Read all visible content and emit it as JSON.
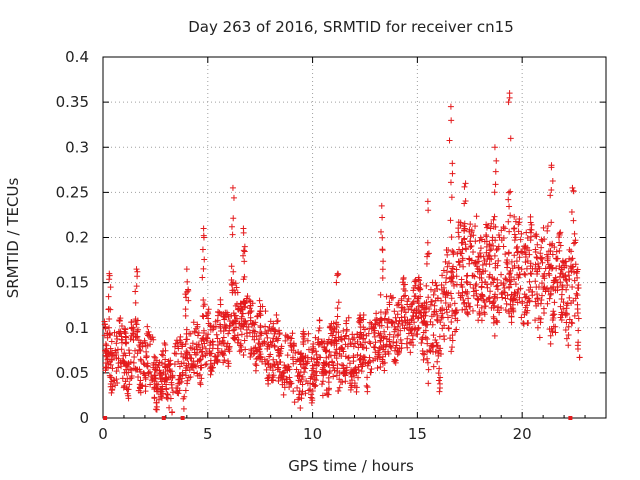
{
  "chart_data": {
    "type": "scatter",
    "title": "Day 263 of 2016, SRMTID for receiver cn15",
    "xlabel": "GPS time / hours",
    "ylabel": "SRMTID / TECUs",
    "xlim": [
      0,
      24
    ],
    "ylim": [
      0,
      0.4
    ],
    "xticks": [
      0,
      5,
      10,
      15,
      20
    ],
    "xtick_labels": [
      "0",
      "5",
      "10",
      "15",
      "20"
    ],
    "yticks": [
      0,
      0.05,
      0.1,
      0.15,
      0.2,
      0.25,
      0.3,
      0.35,
      0.4
    ],
    "ytick_labels": [
      "0",
      "0.05",
      "0.1",
      "0.15",
      "0.2",
      "0.25",
      "0.3",
      "0.35",
      "0.4"
    ],
    "grid": true,
    "marker": "+",
    "color": "#e41a1c",
    "series": [
      {
        "name": "SRMTID",
        "trend": {
          "x": [
            0,
            0.5,
            1,
            1.5,
            2,
            2.5,
            3,
            3.5,
            4,
            4.5,
            5,
            5.5,
            6,
            6.5,
            7,
            7.5,
            8,
            8.5,
            9,
            9.5,
            10,
            10.5,
            11,
            11.5,
            12,
            12.5,
            13,
            13.5,
            14,
            14.5,
            15,
            15.5,
            16,
            16.5,
            17,
            17.5,
            18,
            18.5,
            19,
            19.5,
            20,
            20.5,
            21,
            21.5,
            22,
            22.5,
            22.8
          ],
          "y": [
            0.07,
            0.07,
            0.065,
            0.07,
            0.065,
            0.05,
            0.04,
            0.045,
            0.065,
            0.075,
            0.085,
            0.09,
            0.105,
            0.11,
            0.1,
            0.09,
            0.08,
            0.07,
            0.055,
            0.05,
            0.06,
            0.065,
            0.07,
            0.065,
            0.07,
            0.075,
            0.08,
            0.095,
            0.1,
            0.11,
            0.12,
            0.1,
            0.1,
            0.13,
            0.16,
            0.165,
            0.16,
            0.155,
            0.16,
            0.165,
            0.16,
            0.16,
            0.155,
            0.15,
            0.145,
            0.14,
            0.12
          ]
        },
        "peaks": [
          {
            "x": 0.3,
            "y": 0.16
          },
          {
            "x": 1.6,
            "y": 0.165
          },
          {
            "x": 4.0,
            "y": 0.165
          },
          {
            "x": 4.8,
            "y": 0.21
          },
          {
            "x": 6.2,
            "y": 0.255
          },
          {
            "x": 6.7,
            "y": 0.21
          },
          {
            "x": 11.2,
            "y": 0.16
          },
          {
            "x": 13.3,
            "y": 0.235
          },
          {
            "x": 15.5,
            "y": 0.24
          },
          {
            "x": 16.6,
            "y": 0.345
          },
          {
            "x": 17.3,
            "y": 0.26
          },
          {
            "x": 18.7,
            "y": 0.3
          },
          {
            "x": 19.4,
            "y": 0.36
          },
          {
            "x": 21.4,
            "y": 0.28
          },
          {
            "x": 22.4,
            "y": 0.255
          }
        ],
        "zero_points_x": [
          0.1,
          2.9,
          3.8,
          22.3
        ]
      }
    ]
  }
}
